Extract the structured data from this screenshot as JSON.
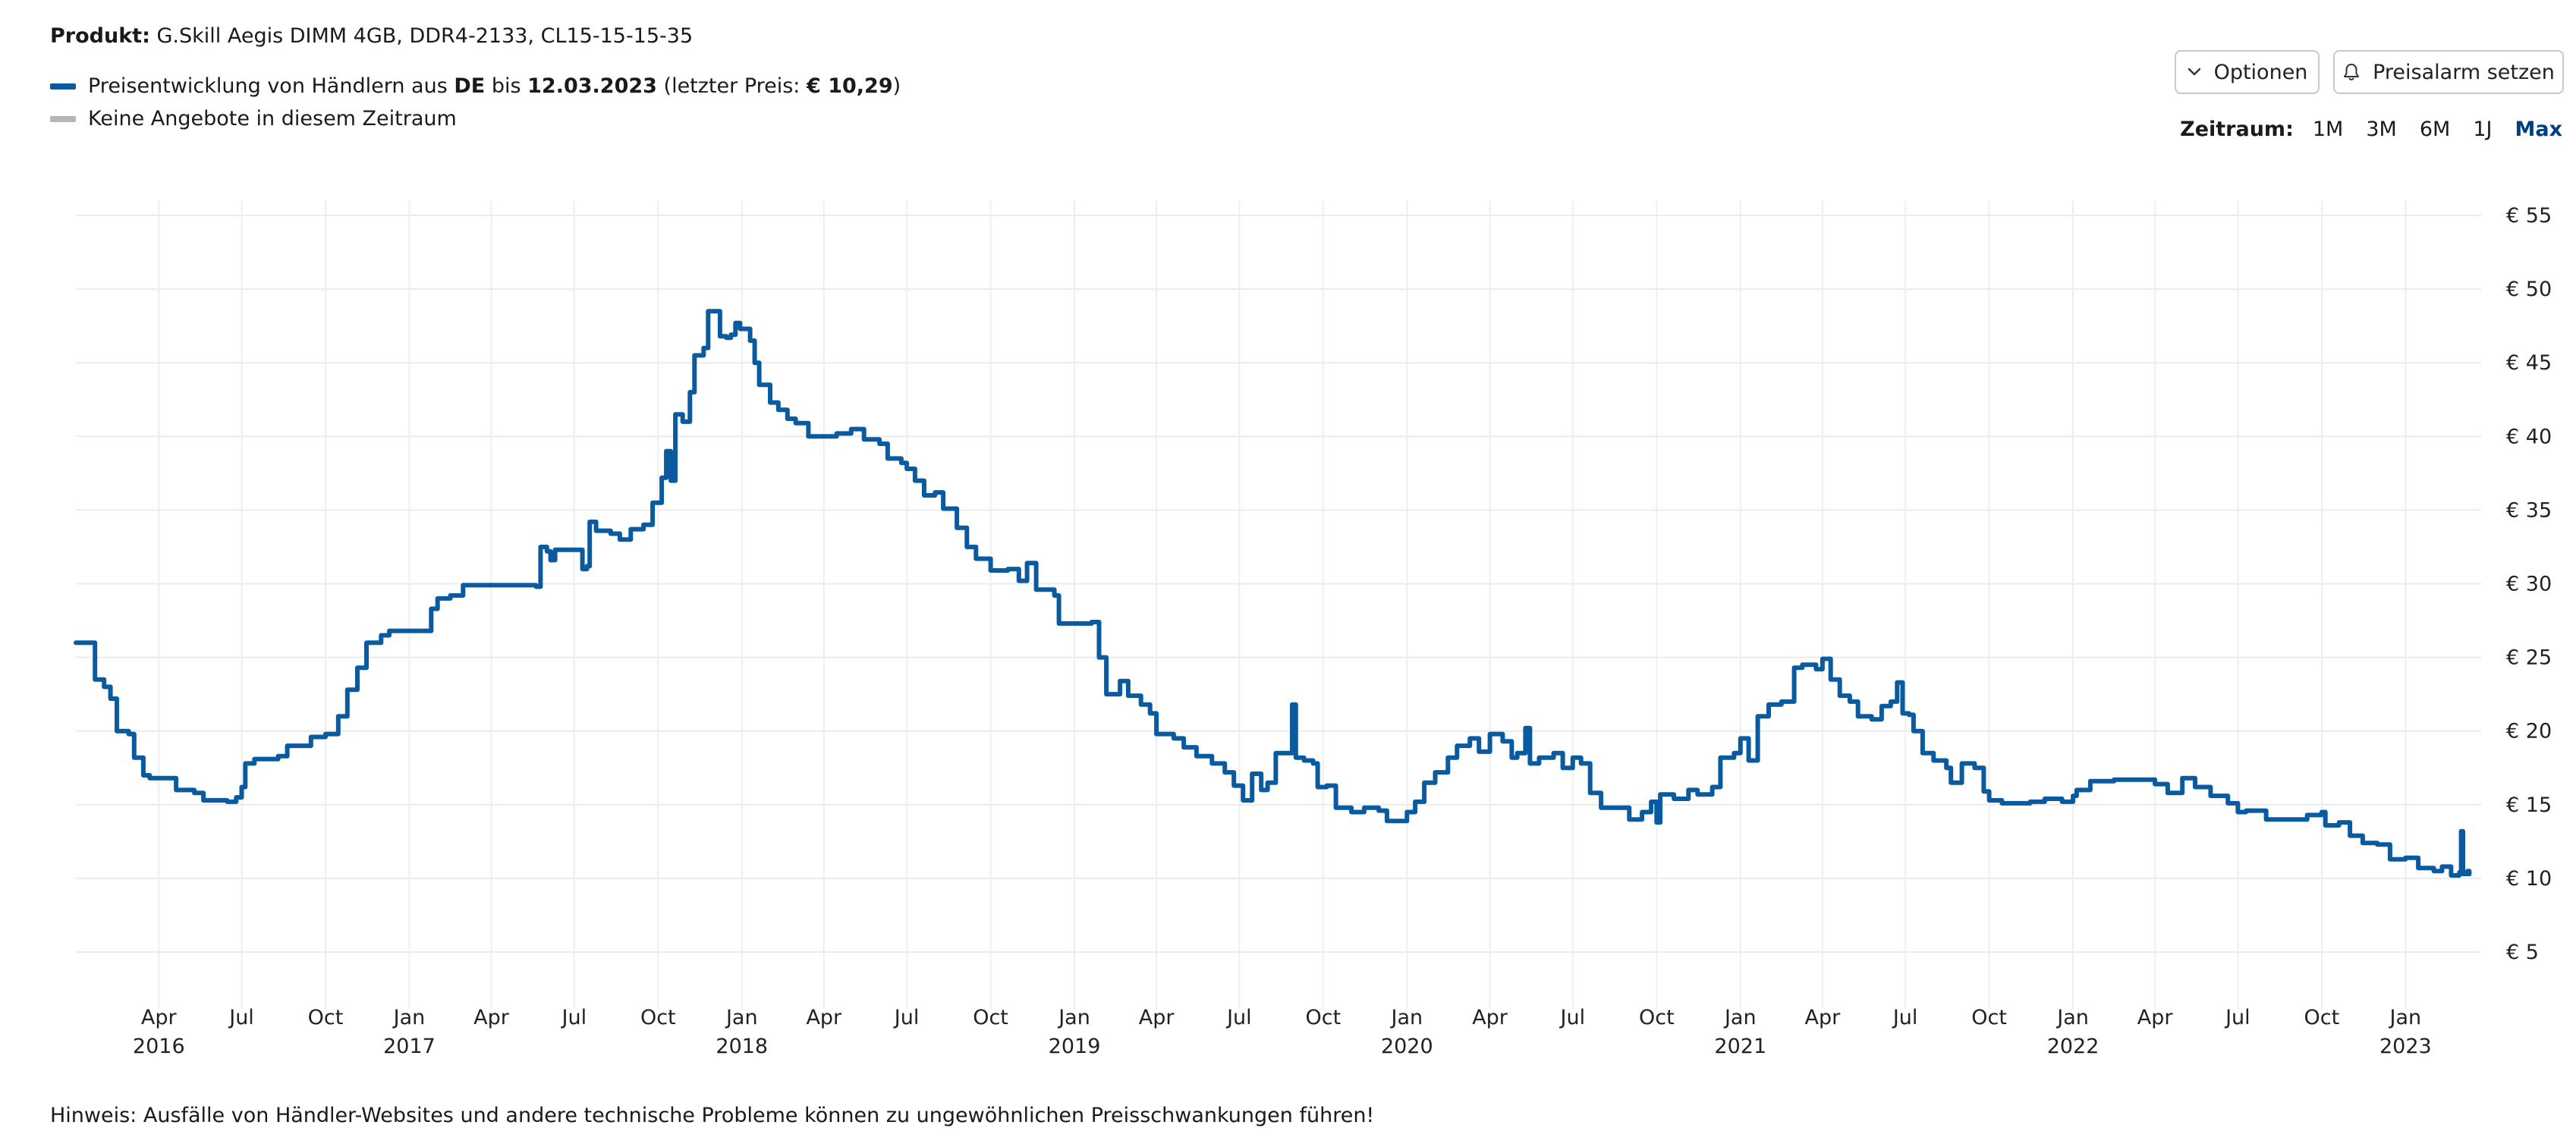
{
  "header": {
    "product_label": "Produkt:",
    "product_name": "G.Skill Aegis DIMM 4GB, DDR4-2133, CL15-15-15-35"
  },
  "legend": {
    "series_prefix": "Preisentwicklung von Händlern aus",
    "country": "DE",
    "until": "bis",
    "date": "12.03.2023",
    "last_price_open": "(letzter Preis:",
    "last_price": "€ 10,29",
    "last_price_close": ")",
    "no_offers": "Keine Angebote in diesem Zeitraum",
    "series_color": "#0a5aa0",
    "no_offers_color": "#b5b5b5"
  },
  "toolbar": {
    "options_label": "Optionen",
    "alarm_label": "Preisalarm setzen"
  },
  "range": {
    "label": "Zeitraum:",
    "options": [
      "1M",
      "3M",
      "6M",
      "1J",
      "Max"
    ],
    "active": "Max"
  },
  "chart_data": {
    "type": "line",
    "title": "",
    "xlabel": "",
    "ylabel": "",
    "ylim": [
      2.5,
      56
    ],
    "yticks": [
      5,
      10,
      15,
      20,
      25,
      30,
      35,
      40,
      45,
      50,
      55
    ],
    "ytick_labels": [
      "€ 5",
      "€ 10",
      "€ 15",
      "€ 20",
      "€ 25",
      "€ 30",
      "€ 35",
      "€ 40",
      "€ 45",
      "€ 50",
      "€ 55"
    ],
    "xlim": [
      "2016-01-01",
      "2023-03-25"
    ],
    "xticks": [
      {
        "date": "2016-04-01",
        "label": "Apr",
        "year": "2016"
      },
      {
        "date": "2016-07-01",
        "label": "Jul",
        "year": ""
      },
      {
        "date": "2016-10-01",
        "label": "Oct",
        "year": ""
      },
      {
        "date": "2017-01-01",
        "label": "Jan",
        "year": "2017"
      },
      {
        "date": "2017-04-01",
        "label": "Apr",
        "year": ""
      },
      {
        "date": "2017-07-01",
        "label": "Jul",
        "year": ""
      },
      {
        "date": "2017-10-01",
        "label": "Oct",
        "year": ""
      },
      {
        "date": "2018-01-01",
        "label": "Jan",
        "year": "2018"
      },
      {
        "date": "2018-04-01",
        "label": "Apr",
        "year": ""
      },
      {
        "date": "2018-07-01",
        "label": "Jul",
        "year": ""
      },
      {
        "date": "2018-10-01",
        "label": "Oct",
        "year": ""
      },
      {
        "date": "2019-01-01",
        "label": "Jan",
        "year": "2019"
      },
      {
        "date": "2019-04-01",
        "label": "Apr",
        "year": ""
      },
      {
        "date": "2019-07-01",
        "label": "Jul",
        "year": ""
      },
      {
        "date": "2019-10-01",
        "label": "Oct",
        "year": ""
      },
      {
        "date": "2020-01-01",
        "label": "Jan",
        "year": "2020"
      },
      {
        "date": "2020-04-01",
        "label": "Apr",
        "year": ""
      },
      {
        "date": "2020-07-01",
        "label": "Jul",
        "year": ""
      },
      {
        "date": "2020-10-01",
        "label": "Oct",
        "year": ""
      },
      {
        "date": "2021-01-01",
        "label": "Jan",
        "year": "2021"
      },
      {
        "date": "2021-04-01",
        "label": "Apr",
        "year": ""
      },
      {
        "date": "2021-07-01",
        "label": "Jul",
        "year": ""
      },
      {
        "date": "2021-10-01",
        "label": "Oct",
        "year": ""
      },
      {
        "date": "2022-01-01",
        "label": "Jan",
        "year": "2022"
      },
      {
        "date": "2022-04-01",
        "label": "Apr",
        "year": ""
      },
      {
        "date": "2022-07-01",
        "label": "Jul",
        "year": ""
      },
      {
        "date": "2022-10-01",
        "label": "Oct",
        "year": ""
      },
      {
        "date": "2023-01-01",
        "label": "Jan",
        "year": "2023"
      }
    ],
    "grid": true,
    "series": [
      {
        "name": "Preisentwicklung von Händlern aus DE",
        "color": "#0a5aa0",
        "points": [
          [
            "2016-01-01",
            26.0
          ],
          [
            "2016-01-20",
            26.0
          ],
          [
            "2016-01-22",
            23.5
          ],
          [
            "2016-02-01",
            23.0
          ],
          [
            "2016-02-08",
            22.2
          ],
          [
            "2016-02-15",
            20.0
          ],
          [
            "2016-02-28",
            19.8
          ],
          [
            "2016-03-05",
            18.2
          ],
          [
            "2016-03-15",
            17.0
          ],
          [
            "2016-03-22",
            16.8
          ],
          [
            "2016-04-15",
            16.8
          ],
          [
            "2016-04-20",
            16.0
          ],
          [
            "2016-05-10",
            15.8
          ],
          [
            "2016-05-20",
            15.3
          ],
          [
            "2016-06-15",
            15.2
          ],
          [
            "2016-06-25",
            15.5
          ],
          [
            "2016-07-01",
            16.2
          ],
          [
            "2016-07-05",
            17.8
          ],
          [
            "2016-07-15",
            18.1
          ],
          [
            "2016-08-10",
            18.3
          ],
          [
            "2016-08-20",
            19.0
          ],
          [
            "2016-09-10",
            19.0
          ],
          [
            "2016-09-15",
            19.6
          ],
          [
            "2016-10-01",
            19.8
          ],
          [
            "2016-10-15",
            21.0
          ],
          [
            "2016-10-25",
            22.8
          ],
          [
            "2016-11-05",
            24.3
          ],
          [
            "2016-11-15",
            26.0
          ],
          [
            "2016-12-01",
            26.5
          ],
          [
            "2016-12-10",
            26.8
          ],
          [
            "2017-01-20",
            26.8
          ],
          [
            "2017-01-25",
            28.3
          ],
          [
            "2017-02-01",
            29.0
          ],
          [
            "2017-02-15",
            29.2
          ],
          [
            "2017-03-01",
            29.9
          ],
          [
            "2017-04-15",
            29.9
          ],
          [
            "2017-05-10",
            29.9
          ],
          [
            "2017-05-20",
            29.8
          ],
          [
            "2017-05-25",
            32.5
          ],
          [
            "2017-06-01",
            32.2
          ],
          [
            "2017-06-05",
            31.6
          ],
          [
            "2017-06-10",
            32.3
          ],
          [
            "2017-07-05",
            32.3
          ],
          [
            "2017-07-10",
            31.0
          ],
          [
            "2017-07-15",
            31.2
          ],
          [
            "2017-07-18",
            34.2
          ],
          [
            "2017-07-25",
            33.6
          ],
          [
            "2017-08-10",
            33.4
          ],
          [
            "2017-08-20",
            33.0
          ],
          [
            "2017-09-01",
            33.7
          ],
          [
            "2017-09-15",
            34.0
          ],
          [
            "2017-09-25",
            35.5
          ],
          [
            "2017-10-05",
            37.2
          ],
          [
            "2017-10-10",
            39.0
          ],
          [
            "2017-10-15",
            37.0
          ],
          [
            "2017-10-20",
            41.5
          ],
          [
            "2017-10-28",
            41.0
          ],
          [
            "2017-11-05",
            43.0
          ],
          [
            "2017-11-10",
            45.5
          ],
          [
            "2017-11-20",
            46.0
          ],
          [
            "2017-11-25",
            48.5
          ],
          [
            "2017-12-05",
            48.5
          ],
          [
            "2017-12-08",
            46.8
          ],
          [
            "2017-12-15",
            46.7
          ],
          [
            "2017-12-20",
            46.9
          ],
          [
            "2017-12-25",
            47.7
          ],
          [
            "2017-12-30",
            47.3
          ],
          [
            "2018-01-10",
            46.5
          ],
          [
            "2018-01-15",
            45.0
          ],
          [
            "2018-01-20",
            43.5
          ],
          [
            "2018-02-01",
            42.3
          ],
          [
            "2018-02-10",
            41.8
          ],
          [
            "2018-02-20",
            41.2
          ],
          [
            "2018-03-01",
            40.9
          ],
          [
            "2018-03-15",
            40.0
          ],
          [
            "2018-04-15",
            40.2
          ],
          [
            "2018-05-01",
            40.5
          ],
          [
            "2018-05-15",
            39.8
          ],
          [
            "2018-06-01",
            39.5
          ],
          [
            "2018-06-10",
            38.5
          ],
          [
            "2018-06-25",
            38.2
          ],
          [
            "2018-07-01",
            37.8
          ],
          [
            "2018-07-10",
            37.0
          ],
          [
            "2018-07-20",
            36.0
          ],
          [
            "2018-08-01",
            36.2
          ],
          [
            "2018-08-10",
            35.1
          ],
          [
            "2018-08-25",
            33.8
          ],
          [
            "2018-09-05",
            32.5
          ],
          [
            "2018-09-15",
            31.7
          ],
          [
            "2018-10-01",
            30.9
          ],
          [
            "2018-10-20",
            31.0
          ],
          [
            "2018-11-01",
            30.2
          ],
          [
            "2018-11-10",
            31.4
          ],
          [
            "2018-11-20",
            29.6
          ],
          [
            "2018-12-10",
            29.2
          ],
          [
            "2018-12-15",
            27.3
          ],
          [
            "2019-01-10",
            27.3
          ],
          [
            "2019-01-20",
            27.4
          ],
          [
            "2019-01-28",
            25.0
          ],
          [
            "2019-02-05",
            22.5
          ],
          [
            "2019-02-20",
            23.4
          ],
          [
            "2019-03-01",
            22.4
          ],
          [
            "2019-03-15",
            21.8
          ],
          [
            "2019-03-25",
            21.2
          ],
          [
            "2019-04-01",
            19.8
          ],
          [
            "2019-04-20",
            19.5
          ],
          [
            "2019-05-01",
            18.9
          ],
          [
            "2019-05-15",
            18.3
          ],
          [
            "2019-06-01",
            17.8
          ],
          [
            "2019-06-15",
            17.2
          ],
          [
            "2019-06-25",
            16.3
          ],
          [
            "2019-07-05",
            15.3
          ],
          [
            "2019-07-15",
            17.1
          ],
          [
            "2019-07-25",
            16.0
          ],
          [
            "2019-08-01",
            16.5
          ],
          [
            "2019-08-10",
            18.5
          ],
          [
            "2019-08-25",
            18.5
          ],
          [
            "2019-08-28",
            21.8
          ],
          [
            "2019-09-01",
            18.2
          ],
          [
            "2019-09-10",
            18.0
          ],
          [
            "2019-09-20",
            17.8
          ],
          [
            "2019-09-25",
            16.2
          ],
          [
            "2019-10-05",
            16.3
          ],
          [
            "2019-10-15",
            14.8
          ],
          [
            "2019-11-01",
            14.5
          ],
          [
            "2019-11-15",
            14.8
          ],
          [
            "2019-12-01",
            14.6
          ],
          [
            "2019-12-10",
            13.9
          ],
          [
            "2019-12-25",
            13.9
          ],
          [
            "2020-01-01",
            14.5
          ],
          [
            "2020-01-10",
            15.2
          ],
          [
            "2020-01-20",
            16.5
          ],
          [
            "2020-02-01",
            17.2
          ],
          [
            "2020-02-15",
            18.2
          ],
          [
            "2020-02-25",
            19.0
          ],
          [
            "2020-03-10",
            19.5
          ],
          [
            "2020-03-20",
            18.6
          ],
          [
            "2020-04-01",
            19.8
          ],
          [
            "2020-04-15",
            19.3
          ],
          [
            "2020-04-25",
            18.2
          ],
          [
            "2020-05-01",
            18.5
          ],
          [
            "2020-05-10",
            20.2
          ],
          [
            "2020-05-15",
            17.8
          ],
          [
            "2020-05-25",
            18.2
          ],
          [
            "2020-06-10",
            18.5
          ],
          [
            "2020-06-20",
            17.5
          ],
          [
            "2020-07-01",
            18.2
          ],
          [
            "2020-07-10",
            17.8
          ],
          [
            "2020-07-20",
            15.8
          ],
          [
            "2020-08-01",
            14.8
          ],
          [
            "2020-08-20",
            14.8
          ],
          [
            "2020-09-01",
            14.0
          ],
          [
            "2020-09-15",
            14.5
          ],
          [
            "2020-09-25",
            15.2
          ],
          [
            "2020-10-01",
            13.8
          ],
          [
            "2020-10-05",
            15.7
          ],
          [
            "2020-10-20",
            15.4
          ],
          [
            "2020-11-05",
            16.0
          ],
          [
            "2020-11-15",
            15.7
          ],
          [
            "2020-12-01",
            16.2
          ],
          [
            "2020-12-10",
            18.2
          ],
          [
            "2020-12-25",
            18.5
          ],
          [
            "2021-01-01",
            19.5
          ],
          [
            "2021-01-10",
            18.0
          ],
          [
            "2021-01-20",
            21.0
          ],
          [
            "2021-02-01",
            21.8
          ],
          [
            "2021-02-15",
            22.0
          ],
          [
            "2021-03-01",
            24.3
          ],
          [
            "2021-03-10",
            24.5
          ],
          [
            "2021-03-25",
            24.2
          ],
          [
            "2021-04-01",
            24.9
          ],
          [
            "2021-04-10",
            23.5
          ],
          [
            "2021-04-20",
            22.4
          ],
          [
            "2021-05-01",
            22.0
          ],
          [
            "2021-05-10",
            21.0
          ],
          [
            "2021-05-25",
            20.8
          ],
          [
            "2021-06-05",
            21.7
          ],
          [
            "2021-06-15",
            22.0
          ],
          [
            "2021-06-22",
            23.3
          ],
          [
            "2021-06-28",
            21.2
          ],
          [
            "2021-07-05",
            21.1
          ],
          [
            "2021-07-10",
            20.0
          ],
          [
            "2021-07-20",
            18.5
          ],
          [
            "2021-08-01",
            18.0
          ],
          [
            "2021-08-15",
            17.5
          ],
          [
            "2021-08-20",
            16.5
          ],
          [
            "2021-09-01",
            17.8
          ],
          [
            "2021-09-15",
            17.5
          ],
          [
            "2021-09-25",
            15.9
          ],
          [
            "2021-10-01",
            15.3
          ],
          [
            "2021-10-15",
            15.1
          ],
          [
            "2021-11-15",
            15.2
          ],
          [
            "2021-12-01",
            15.4
          ],
          [
            "2021-12-20",
            15.2
          ],
          [
            "2022-01-01",
            15.6
          ],
          [
            "2022-01-05",
            16.0
          ],
          [
            "2022-01-20",
            16.6
          ],
          [
            "2022-02-15",
            16.7
          ],
          [
            "2022-03-15",
            16.7
          ],
          [
            "2022-04-01",
            16.4
          ],
          [
            "2022-04-15",
            15.8
          ],
          [
            "2022-05-01",
            16.8
          ],
          [
            "2022-05-15",
            16.2
          ],
          [
            "2022-06-01",
            15.6
          ],
          [
            "2022-06-20",
            15.1
          ],
          [
            "2022-07-01",
            14.5
          ],
          [
            "2022-07-10",
            14.6
          ],
          [
            "2022-08-01",
            14.0
          ],
          [
            "2022-09-01",
            14.0
          ],
          [
            "2022-09-15",
            14.3
          ],
          [
            "2022-10-01",
            14.5
          ],
          [
            "2022-10-05",
            13.6
          ],
          [
            "2022-10-20",
            13.8
          ],
          [
            "2022-11-01",
            12.9
          ],
          [
            "2022-11-15",
            12.4
          ],
          [
            "2022-12-01",
            12.3
          ],
          [
            "2022-12-15",
            11.3
          ],
          [
            "2023-01-01",
            11.4
          ],
          [
            "2023-01-15",
            10.7
          ],
          [
            "2023-02-01",
            10.5
          ],
          [
            "2023-02-10",
            10.8
          ],
          [
            "2023-02-20",
            10.2
          ],
          [
            "2023-03-01",
            10.4
          ],
          [
            "2023-03-03",
            13.2
          ],
          [
            "2023-03-05",
            10.3
          ],
          [
            "2023-03-10",
            10.5
          ],
          [
            "2023-03-12",
            10.29
          ]
        ]
      }
    ]
  },
  "footer": {
    "note": "Hinweis: Ausfälle von Händler-Websites und andere technische Probleme können zu ungewöhnlichen Preisschwankungen führen!"
  }
}
